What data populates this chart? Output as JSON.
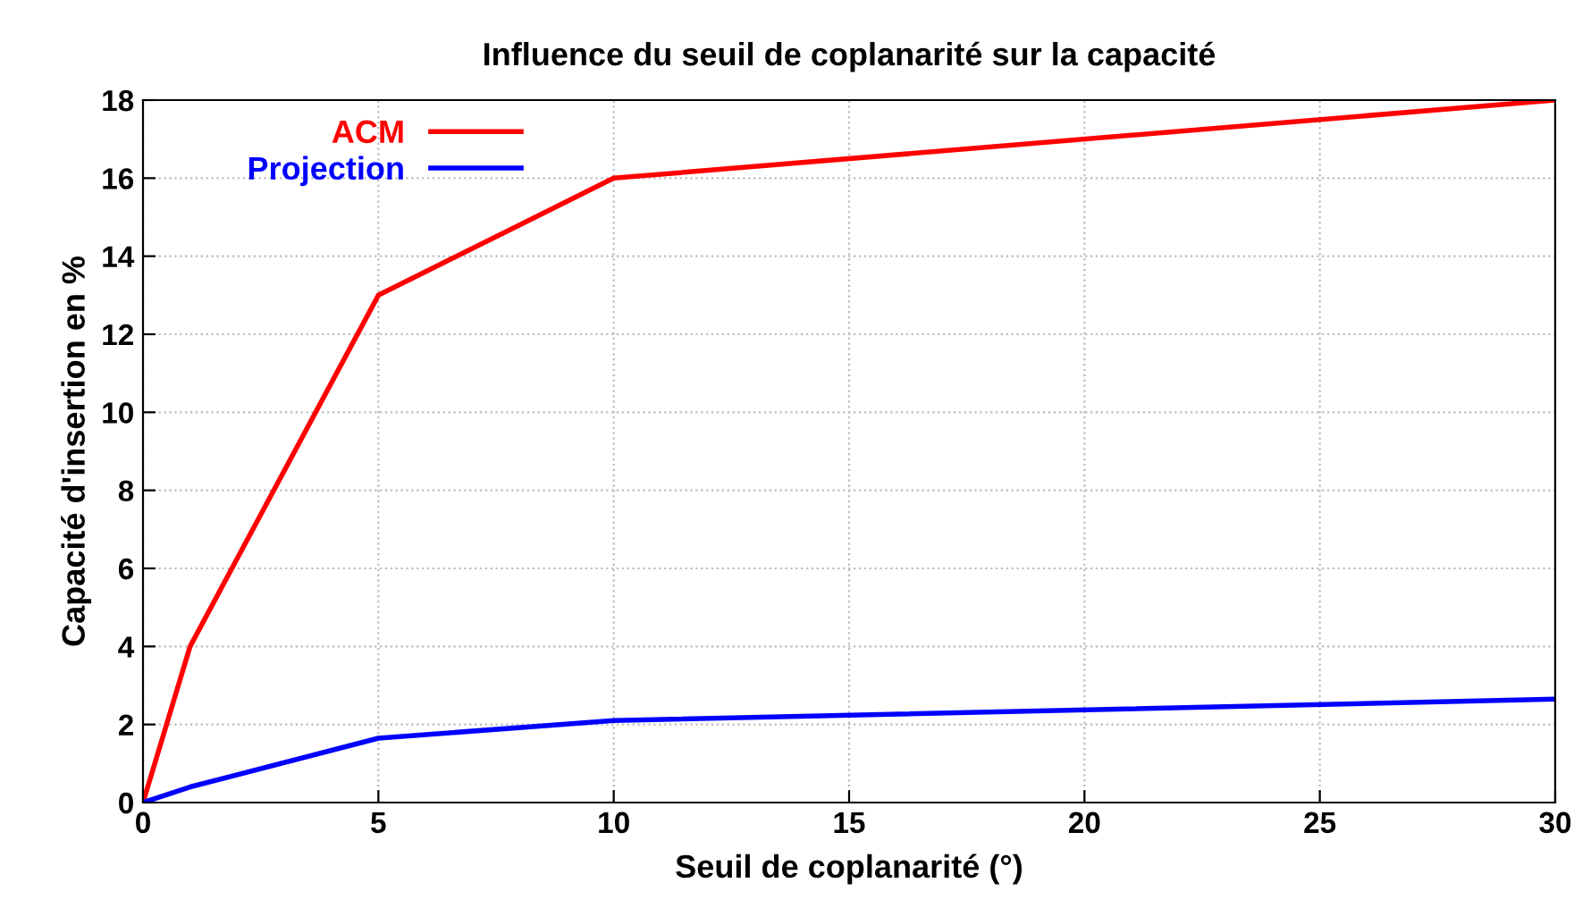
{
  "chart_data": {
    "type": "line",
    "title": "Influence du seuil de coplanarité sur la capacité",
    "xlabel": "Seuil de coplanarité (°)",
    "ylabel": "Capacité d'insertion en %",
    "x": [
      0,
      1,
      5,
      10,
      30
    ],
    "series": [
      {
        "name": "ACM",
        "color": "#ff0000",
        "values": [
          0,
          4,
          13,
          16,
          18
        ]
      },
      {
        "name": "Projection",
        "color": "#0000ff",
        "values": [
          0,
          0.4,
          1.65,
          2.1,
          2.65
        ]
      }
    ],
    "xlim": [
      0,
      30
    ],
    "xticks": [
      0,
      5,
      10,
      15,
      20,
      25,
      30
    ],
    "ylim": [
      0,
      18
    ],
    "yticks": [
      0,
      2,
      4,
      6,
      8,
      10,
      12,
      14,
      16,
      18
    ],
    "grid": true,
    "legend": "top left",
    "marker": "none",
    "line_style": "solid"
  }
}
